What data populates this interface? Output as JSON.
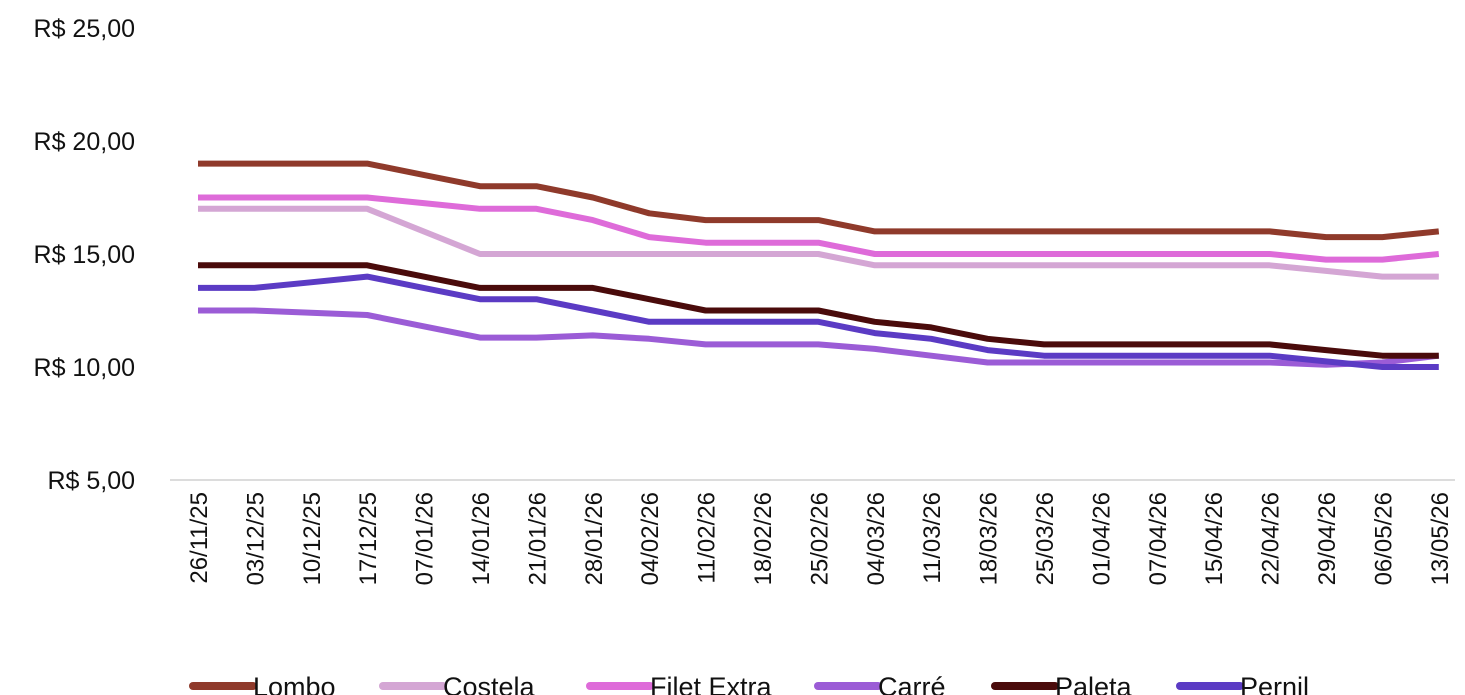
{
  "chart_data": {
    "type": "line",
    "title": "",
    "xlabel": "",
    "ylabel": "",
    "ylim": [
      5,
      25
    ],
    "y_ticks": [
      5,
      10,
      15,
      20,
      25
    ],
    "y_tick_labels": [
      "R$ 5,00",
      "R$ 10,00",
      "R$ 15,00",
      "R$ 20,00",
      "R$ 25,00"
    ],
    "grid": false,
    "legend": "bottom",
    "categories": [
      "26/11/25",
      "03/12/25",
      "10/12/25",
      "17/12/25",
      "07/01/26",
      "14/01/26",
      "21/01/26",
      "28/01/26",
      "04/02/26",
      "11/02/26",
      "18/02/26",
      "25/02/26",
      "04/03/26",
      "11/03/26",
      "18/03/26",
      "25/03/26",
      "01/04/26",
      "07/04/26",
      "15/04/26",
      "22/04/26",
      "29/04/26",
      "06/05/26",
      "13/05/26"
    ],
    "series": [
      {
        "name": "Lombo",
        "color": "#8f3a2b",
        "values": [
          19.0,
          19.0,
          19.0,
          19.0,
          18.5,
          18.0,
          18.0,
          17.5,
          16.8,
          16.5,
          16.5,
          16.5,
          16.0,
          16.0,
          16.0,
          16.0,
          16.0,
          16.0,
          16.0,
          16.0,
          15.75,
          15.75,
          16.0
        ]
      },
      {
        "name": "Costela",
        "color": "#d4a6d4",
        "values": [
          17.0,
          17.0,
          17.0,
          17.0,
          16.0,
          15.0,
          15.0,
          15.0,
          15.0,
          15.0,
          15.0,
          15.0,
          14.5,
          14.5,
          14.5,
          14.5,
          14.5,
          14.5,
          14.5,
          14.5,
          14.25,
          14.0,
          14.0
        ]
      },
      {
        "name": "Filet Extra",
        "color": "#de6bd9",
        "values": [
          17.5,
          17.5,
          17.5,
          17.5,
          17.25,
          17.0,
          17.0,
          16.5,
          15.75,
          15.5,
          15.5,
          15.5,
          15.0,
          15.0,
          15.0,
          15.0,
          15.0,
          15.0,
          15.0,
          15.0,
          14.75,
          14.75,
          15.0
        ]
      },
      {
        "name": "Carré",
        "color": "#9b5cd6",
        "values": [
          12.5,
          12.5,
          12.4,
          12.3,
          11.8,
          11.3,
          11.3,
          11.4,
          11.25,
          11.0,
          11.0,
          11.0,
          10.8,
          10.5,
          10.2,
          10.2,
          10.2,
          10.2,
          10.2,
          10.2,
          10.1,
          10.2,
          10.5
        ]
      },
      {
        "name": "Paleta",
        "color": "#4a0b0b",
        "values": [
          14.5,
          14.5,
          14.5,
          14.5,
          14.0,
          13.5,
          13.5,
          13.5,
          13.0,
          12.5,
          12.5,
          12.5,
          12.0,
          11.75,
          11.25,
          11.0,
          11.0,
          11.0,
          11.0,
          11.0,
          10.75,
          10.5,
          10.5
        ]
      },
      {
        "name": "Pernil",
        "color": "#5b3bc4",
        "values": [
          13.5,
          13.5,
          13.75,
          14.0,
          13.5,
          13.0,
          13.0,
          12.5,
          12.0,
          12.0,
          12.0,
          12.0,
          11.5,
          11.25,
          10.75,
          10.5,
          10.5,
          10.5,
          10.5,
          10.5,
          10.25,
          10.0,
          10.0
        ]
      }
    ]
  }
}
